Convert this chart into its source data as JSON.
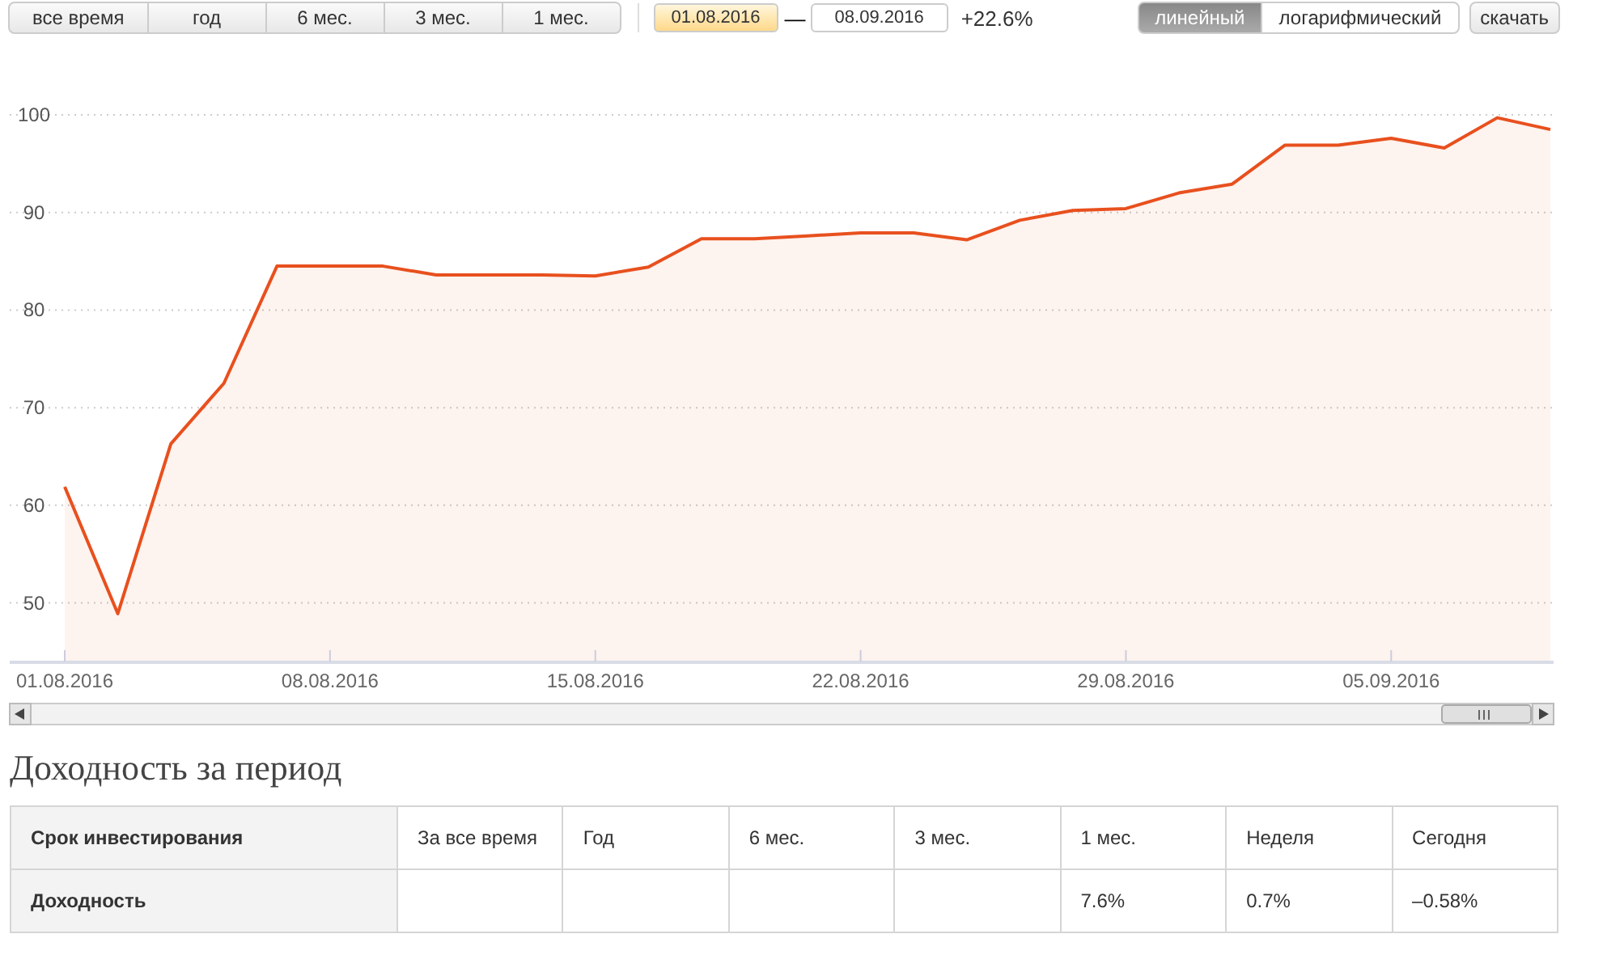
{
  "chart_data": [
    {
      "type": "area",
      "color": "#e8501e",
      "categories": [
        "01.08.2016",
        null,
        null,
        null,
        null,
        "08.08.2016",
        null,
        null,
        null,
        null,
        "15.08.2016",
        null,
        null,
        null,
        null,
        "22.08.2016",
        null,
        null,
        null,
        null,
        "29.08.2016",
        null,
        null,
        null,
        null,
        "05.09.2016",
        null,
        null,
        null
      ],
      "values": [
        61.9,
        48.9,
        66.3,
        72.5,
        84.5,
        84.5,
        84.5,
        83.6,
        83.6,
        83.6,
        83.5,
        84.4,
        87.3,
        87.3,
        87.6,
        87.9,
        87.9,
        87.2,
        89.2,
        90.2,
        90.4,
        92.0,
        92.9,
        96.9,
        96.9,
        97.6,
        96.6,
        99.7,
        98.5
      ],
      "ylim": [
        44,
        100
      ],
      "yticks": [
        50,
        60,
        70,
        80,
        90,
        100
      ],
      "grid": "y",
      "marker": "none",
      "line_style": "solid",
      "annotations": [
        "все время",
        "год",
        "6 мес.",
        "3 мес.",
        "1 мес.",
        "01.08.2016",
        "—",
        "08.09.2016",
        "+22.6%",
        "линейный",
        "логарифмический",
        "скачать"
      ]
    },
    {
      "type": "other",
      "title": "Доходность за период",
      "ylabel": "Срок инвестирования",
      "categories": [
        "За все время",
        "Год",
        "6 мес.",
        "3 мес.",
        "1 мес.",
        "Неделя",
        "Сегодня"
      ],
      "y_categories": [
        "Доходность"
      ],
      "cell_labels": [
        [
          null,
          null,
          null,
          null,
          "7.6%",
          "0.7%",
          "–0.58%"
        ]
      ]
    }
  ]
}
